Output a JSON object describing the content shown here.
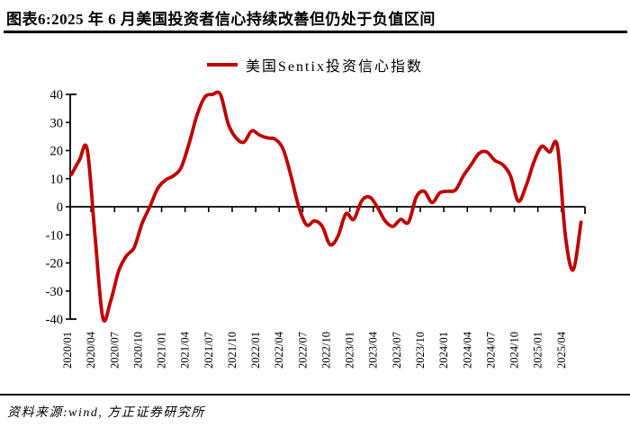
{
  "header": {
    "title": "图表6:2025 年 6 月美国投资者信心持续改善但仍处于负值区间"
  },
  "legend": {
    "label": "美国Sentix投资信心指数"
  },
  "footer": {
    "source": "资料来源:wind, 方正证券研究所"
  },
  "colors": {
    "line": "#c00000",
    "axis": "#000000",
    "text": "#000000",
    "background": "#ffffff"
  },
  "chart_data": {
    "type": "line",
    "title": "图表6:2025 年 6 月美国投资者信心持续改善但仍处于负值区间",
    "smooth": true,
    "grid": false,
    "legend_position": "top-center",
    "ylim": [
      -40,
      40
    ],
    "yticks": [
      -40,
      -30,
      -20,
      -10,
      0,
      10,
      20,
      30,
      40
    ],
    "x_tick_labels": [
      "2020/01",
      "2020/04",
      "2020/07",
      "2020/10",
      "2021/01",
      "2021/04",
      "2021/07",
      "2021/10",
      "2022/01",
      "2022/04",
      "2022/07",
      "2022/10",
      "2023/01",
      "2023/04",
      "2023/07",
      "2023/10",
      "2024/01",
      "2024/04",
      "2024/07",
      "2024/10",
      "2025/01",
      "2025/04"
    ],
    "x": [
      "2020/01",
      "2020/02",
      "2020/03",
      "2020/04",
      "2020/05",
      "2020/06",
      "2020/07",
      "2020/08",
      "2020/09",
      "2020/10",
      "2020/11",
      "2020/12",
      "2021/01",
      "2021/02",
      "2021/03",
      "2021/04",
      "2021/05",
      "2021/06",
      "2021/07",
      "2021/08",
      "2021/09",
      "2021/10",
      "2021/11",
      "2021/12",
      "2022/01",
      "2022/02",
      "2022/03",
      "2022/04",
      "2022/05",
      "2022/06",
      "2022/07",
      "2022/08",
      "2022/09",
      "2022/10",
      "2022/11",
      "2022/12",
      "2023/01",
      "2023/02",
      "2023/03",
      "2023/04",
      "2023/05",
      "2023/06",
      "2023/07",
      "2023/08",
      "2023/09",
      "2023/10",
      "2023/11",
      "2023/12",
      "2024/01",
      "2024/02",
      "2024/03",
      "2024/04",
      "2024/05",
      "2024/06",
      "2024/07",
      "2024/08",
      "2024/09",
      "2024/10",
      "2024/11",
      "2024/12",
      "2025/01",
      "2025/02",
      "2025/03",
      "2025/04",
      "2025/05",
      "2025/06"
    ],
    "series": [
      {
        "name": "美国Sentix投资信心指数",
        "color": "#c00000",
        "values": [
          11.5,
          16.5,
          20.5,
          -10,
          -39.5,
          -33.5,
          -23,
          -17.5,
          -14.5,
          -6,
          0,
          6.5,
          9.5,
          11,
          14,
          22.5,
          32.5,
          39,
          40,
          40,
          29.5,
          24.5,
          23,
          27,
          25.5,
          24.5,
          24,
          20.5,
          11,
          0,
          -6.5,
          -5,
          -7,
          -13.5,
          -10.5,
          -2.5,
          -4.5,
          2,
          3.5,
          0,
          -5,
          -7,
          -4.5,
          -5.5,
          3.5,
          5.5,
          1.5,
          5,
          5.5,
          6,
          11,
          15,
          19,
          19.5,
          16.5,
          15,
          11,
          2,
          7.5,
          16,
          21.5,
          19.5,
          21.5,
          -10,
          -22.5,
          -5.5
        ]
      }
    ]
  }
}
